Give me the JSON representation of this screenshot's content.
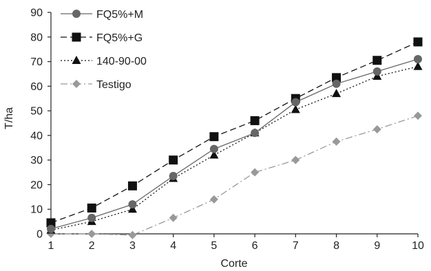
{
  "chart_data": {
    "type": "line",
    "xlabel": "Corte",
    "ylabel": "T/ha",
    "x": [
      1,
      2,
      3,
      4,
      5,
      6,
      7,
      8,
      9,
      10
    ],
    "xlim": [
      1,
      10
    ],
    "ylim": [
      0,
      90
    ],
    "yticks": [
      0,
      10,
      20,
      30,
      40,
      50,
      60,
      70,
      80,
      90
    ],
    "grid": false,
    "legend_position": "top-left",
    "series": [
      {
        "name": "FQ5%+M",
        "values": [
          2,
          6.5,
          12,
          23.5,
          34.5,
          41,
          53.5,
          61,
          66,
          71
        ],
        "color": "#666666",
        "line": "solid",
        "marker": "circle"
      },
      {
        "name": "FQ5%+G",
        "values": [
          4.5,
          10.5,
          19.5,
          30,
          39.5,
          46,
          55,
          63.5,
          70.5,
          78
        ],
        "color": "#111111",
        "line": "dashed",
        "marker": "square"
      },
      {
        "name": "140-90-00",
        "values": [
          1.5,
          5,
          10,
          22.5,
          32,
          41,
          50.5,
          57,
          64,
          68
        ],
        "color": "#111111",
        "line": "dotted",
        "marker": "triangle"
      },
      {
        "name": "Testigo",
        "values": [
          0,
          0,
          -0.5,
          6.5,
          14,
          25,
          30,
          37.5,
          42.5,
          48
        ],
        "color": "#999999",
        "line": "dashdot",
        "marker": "diamond"
      }
    ]
  }
}
